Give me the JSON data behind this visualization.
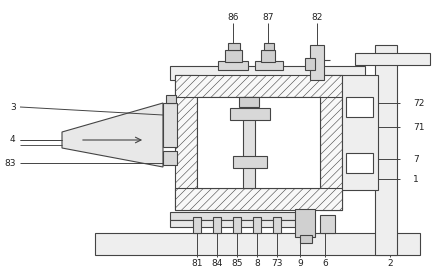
{
  "fig_bg": "#ffffff",
  "line_color": "#444444",
  "lw": 0.8,
  "hatch_lw": 0.4,
  "label_fs": 6.5,
  "label_color": "#222222"
}
